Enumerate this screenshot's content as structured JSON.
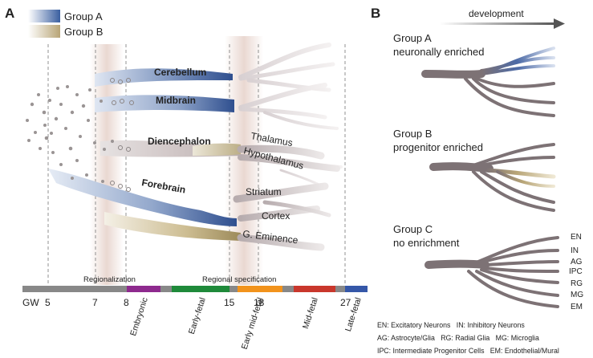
{
  "panel_a": {
    "label": "A",
    "legend": [
      {
        "name": "Group A",
        "color": "#3a5fa0"
      },
      {
        "name": "Group B",
        "color": "#b8a577"
      }
    ],
    "regions": [
      "Cerebellum",
      "Midbrain",
      "Diencephalon",
      "Forebrain"
    ],
    "subregions": [
      "Thalamus",
      "Hypothalamus",
      "Striatum",
      "Cortex",
      "G. Eminence"
    ],
    "timeline": {
      "unit": "GW",
      "weeks": [
        "5",
        "7",
        "8",
        "15",
        "18",
        "27"
      ],
      "processes": [
        "Regionalization",
        "Regional specification"
      ],
      "stages": [
        {
          "name": "Embryonic",
          "color": "#8e2a8e"
        },
        {
          "name": "Early-fetal",
          "color": "#1f8a3a"
        },
        {
          "name": "Early mid-fetal",
          "color": "#f2931c"
        },
        {
          "name": "Mid-fetal",
          "color": "#c9372c"
        },
        {
          "name": "Late-fetal",
          "color": "#3557a8"
        }
      ],
      "axis_color": "#888888"
    }
  },
  "panel_b": {
    "label": "B",
    "arrow_label": "development",
    "groups": [
      {
        "title": "Group A",
        "subtitle": "neuronally enriched",
        "color": "#3a5fa0"
      },
      {
        "title": "Group B",
        "subtitle": "progenitor enriched",
        "color": "#b8a577"
      },
      {
        "title": "Group C",
        "subtitle": "no enrichment",
        "color": "#7a6e72"
      }
    ],
    "cell_types": [
      "EN",
      "IN",
      "AG",
      "IPC",
      "RG",
      "MG",
      "EM"
    ],
    "footnote_lines": [
      "EN: Excitatory Neurons   IN: Inhibitory Neurons",
      "AG: Astrocyte/Glia   RG: Radial Glia   MG: Microglia",
      "IPC: Intermediate Progenitor Cells   EM: Endothelial/Mural"
    ]
  }
}
